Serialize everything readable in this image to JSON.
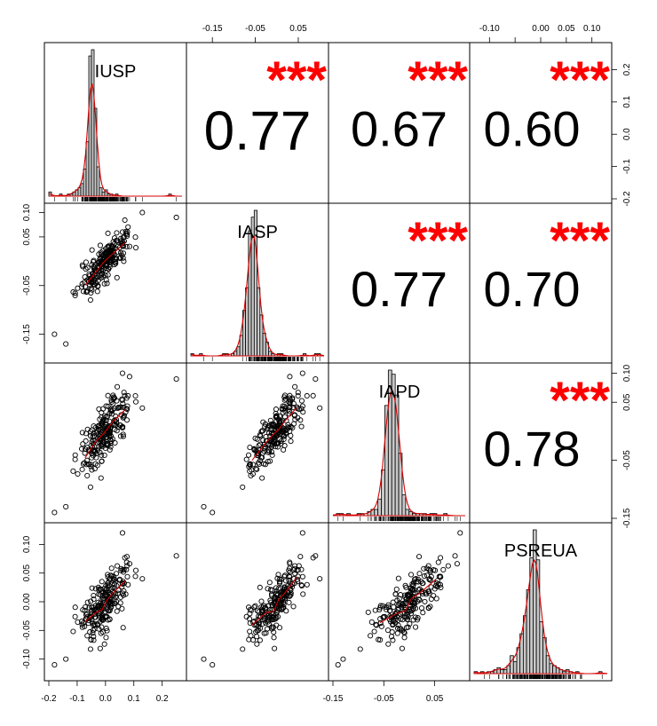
{
  "chart_data": {
    "type": "scatter-matrix",
    "variables": [
      "IUSP",
      "IASP",
      "IAPD",
      "PSREUA"
    ],
    "correlations": [
      {
        "row": 0,
        "col": 1,
        "value": "0.77",
        "stars": "***"
      },
      {
        "row": 0,
        "col": 2,
        "value": "0.67",
        "stars": "***"
      },
      {
        "row": 0,
        "col": 3,
        "value": "0.60",
        "stars": "***"
      },
      {
        "row": 1,
        "col": 2,
        "value": "0.77",
        "stars": "***"
      },
      {
        "row": 1,
        "col": 3,
        "value": "0.70",
        "stars": "***"
      },
      {
        "row": 2,
        "col": 3,
        "value": "0.78",
        "stars": "***"
      }
    ],
    "axes": {
      "bottom_col0": {
        "range": [
          -0.2,
          0.27
        ],
        "ticks": [
          -0.2,
          -0.1,
          0.0,
          0.1,
          0.2
        ],
        "labels": [
          "-0.2",
          "-0.1",
          "0.0",
          "0.1",
          "0.2"
        ]
      },
      "top_col1": {
        "range": [
          -0.2,
          0.11
        ],
        "ticks": [
          -0.15,
          -0.05,
          0.05
        ],
        "labels": [
          "-0.15",
          "-0.05",
          "0.05"
        ]
      },
      "bottom_col2": {
        "range": [
          -0.15,
          0.11
        ],
        "ticks": [
          -0.15,
          -0.05,
          0.05
        ],
        "labels": [
          "-0.15",
          "-0.05",
          "0.05"
        ]
      },
      "top_col3": {
        "range": [
          -0.13,
          0.13
        ],
        "ticks": [
          -0.1,
          -0.05,
          0.0,
          0.05,
          0.1
        ],
        "labels": [
          "-0.10",
          "",
          "0.00",
          "0.05",
          "0.10"
        ]
      },
      "right_row0": {
        "range": [
          -0.2,
          0.27
        ],
        "ticks": [
          -0.2,
          -0.1,
          0.0,
          0.1,
          0.2
        ],
        "labels": [
          "-0.2",
          "-0.1",
          "0.0",
          "0.1",
          "0.2"
        ]
      },
      "left_row1": {
        "range": [
          -0.2,
          0.11
        ],
        "ticks": [
          -0.15,
          -0.05,
          0.05,
          0.1
        ],
        "labels": [
          "-0.15",
          "-0.05",
          "0.05",
          "0.10"
        ]
      },
      "right_row2": {
        "range": [
          -0.15,
          0.11
        ],
        "ticks": [
          -0.15,
          -0.05,
          0.05,
          0.1
        ],
        "labels": [
          "-0.15",
          "-0.05",
          "0.05",
          "0.10"
        ]
      },
      "left_row3": {
        "range": [
          -0.13,
          0.13
        ],
        "ticks": [
          -0.1,
          -0.05,
          0.0,
          0.05,
          0.1
        ],
        "labels": [
          "-0.10",
          "-0.05",
          "0.00",
          "0.05",
          "0.10"
        ]
      }
    },
    "histograms": [
      {
        "variable": "IUSP",
        "bin_start": -0.2,
        "bin_width": 0.0094,
        "counts": [
          2,
          0,
          0,
          0,
          1,
          0,
          0,
          1,
          1,
          2,
          3,
          4,
          6,
          13,
          26,
          67,
          70,
          42,
          14,
          4,
          2,
          3,
          1,
          1,
          0,
          1,
          0,
          0,
          0,
          0,
          0,
          0,
          0,
          0,
          0,
          0,
          0,
          0,
          0,
          0,
          0,
          0,
          0,
          0,
          0,
          1,
          0,
          0,
          0
        ]
      },
      {
        "variable": "IASP",
        "bin_start": -0.2,
        "bin_width": 0.0067,
        "counts": [
          1,
          0,
          0,
          1,
          0,
          0,
          0,
          0,
          0,
          0,
          0,
          1,
          1,
          0,
          1,
          2,
          4,
          9,
          20,
          30,
          55,
          61,
          64,
          30,
          18,
          10,
          6,
          2,
          1,
          0,
          1,
          1,
          0,
          0,
          0,
          0,
          0,
          0,
          0,
          1,
          0,
          0,
          0,
          1,
          1,
          0,
          0
        ]
      },
      {
        "variable": "IAPD",
        "bin_start": -0.15,
        "bin_width": 0.0068,
        "counts": [
          0,
          1,
          1,
          0,
          1,
          0,
          0,
          1,
          1,
          0,
          2,
          3,
          3,
          8,
          22,
          53,
          70,
          68,
          58,
          30,
          10,
          3,
          2,
          1,
          1,
          1,
          1,
          0,
          1,
          1,
          0,
          0,
          1,
          0,
          0,
          0,
          0,
          0
        ]
      },
      {
        "variable": "PSREUA",
        "bin_start": -0.13,
        "bin_width": 0.0064,
        "counts": [
          1,
          0,
          1,
          0,
          1,
          1,
          2,
          3,
          2,
          2,
          4,
          9,
          6,
          13,
          20,
          29,
          42,
          58,
          72,
          57,
          26,
          18,
          9,
          5,
          4,
          3,
          2,
          1,
          2,
          1,
          0,
          1,
          0,
          0,
          0,
          0,
          0,
          0,
          1,
          0,
          0
        ]
      }
    ],
    "grid": false,
    "colors": {
      "stars": "#ff0000",
      "smooth": "#d40000",
      "bars": "#c8c8c8",
      "points": "#000000"
    }
  }
}
